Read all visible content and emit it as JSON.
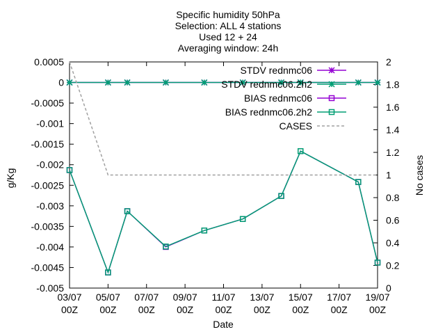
{
  "chart_data": {
    "type": "line",
    "title_lines": [
      "Specific humidity 50hPa",
      "Selection: ALL       4 stations",
      "Used 12 + 24",
      "Averaging window: 24h"
    ],
    "xlabel": "Date",
    "ylabel": "g/Kg",
    "y2label": "No cases",
    "x_range": [
      3,
      19
    ],
    "x_ticks": [
      {
        "x": 3,
        "label1": "03/07",
        "label2": "00Z"
      },
      {
        "x": 5,
        "label1": "05/07",
        "label2": "00Z"
      },
      {
        "x": 7,
        "label1": "07/07",
        "label2": "00Z"
      },
      {
        "x": 9,
        "label1": "09/07",
        "label2": "00Z"
      },
      {
        "x": 11,
        "label1": "11/07",
        "label2": "00Z"
      },
      {
        "x": 13,
        "label1": "13/07",
        "label2": "00Z"
      },
      {
        "x": 15,
        "label1": "15/07",
        "label2": "00Z"
      },
      {
        "x": 17,
        "label1": "17/07",
        "label2": "00Z"
      },
      {
        "x": 19,
        "label1": "19/07",
        "label2": "00Z"
      }
    ],
    "ylim": [
      -0.005,
      0.0005
    ],
    "y_ticks": [
      "0.0005",
      "0",
      "-0.0005",
      "-0.001",
      "-0.0015",
      "-0.002",
      "-0.0025",
      "-0.003",
      "-0.0035",
      "-0.004",
      "-0.0045",
      "-0.005"
    ],
    "y2lim": [
      0,
      2
    ],
    "y2_ticks": [
      "2",
      "1.8",
      "1.6",
      "1.4",
      "1.2",
      "1",
      "0.8",
      "0.6",
      "0.4",
      "0.2",
      "0"
    ],
    "legend_position": "top-right",
    "series": [
      {
        "name": "STDV rednmc06",
        "axis": "y1",
        "color": "#9400d3",
        "marker": "star",
        "dash": false,
        "x": [
          3,
          5,
          6,
          8,
          10,
          12,
          14,
          15,
          18,
          19
        ],
        "y": [
          0,
          0,
          0,
          0,
          0,
          0,
          0,
          0,
          0,
          0
        ]
      },
      {
        "name": "STDV rednmc06.2h2",
        "axis": "y1",
        "color": "#009e73",
        "marker": "star",
        "dash": false,
        "x": [
          3,
          5,
          6,
          8,
          10,
          12,
          14,
          15,
          18,
          19
        ],
        "y": [
          0,
          0,
          0,
          0,
          0,
          0,
          0,
          0,
          0,
          0
        ]
      },
      {
        "name": "BIAS rednmc06",
        "axis": "y1",
        "color": "#9400d3",
        "marker": "square",
        "dash": false,
        "x": [
          3,
          5,
          6,
          8,
          10,
          12,
          14,
          15,
          18,
          19
        ],
        "y": [
          -0.00213,
          -0.00462,
          -0.00313,
          -0.004,
          -0.0036,
          -0.00332,
          -0.00276,
          -0.00167,
          -0.00242,
          -0.00438
        ]
      },
      {
        "name": "BIAS rednmc06.2h2",
        "axis": "y1",
        "color": "#009e73",
        "marker": "square",
        "dash": false,
        "x": [
          3,
          5,
          6,
          8,
          10,
          12,
          14,
          15,
          18,
          19
        ],
        "y": [
          -0.00213,
          -0.00462,
          -0.00313,
          -0.00399,
          -0.0036,
          -0.00332,
          -0.00276,
          -0.00167,
          -0.00242,
          -0.00438
        ]
      },
      {
        "name": "CASES",
        "axis": "y2",
        "color": "#a0a0a0",
        "marker": "none",
        "dash": true,
        "x": [
          3,
          5,
          6,
          8,
          10,
          12,
          14,
          15,
          18,
          19
        ],
        "y": [
          2,
          1,
          1,
          1,
          1,
          1,
          1,
          1,
          1,
          1
        ]
      }
    ]
  }
}
